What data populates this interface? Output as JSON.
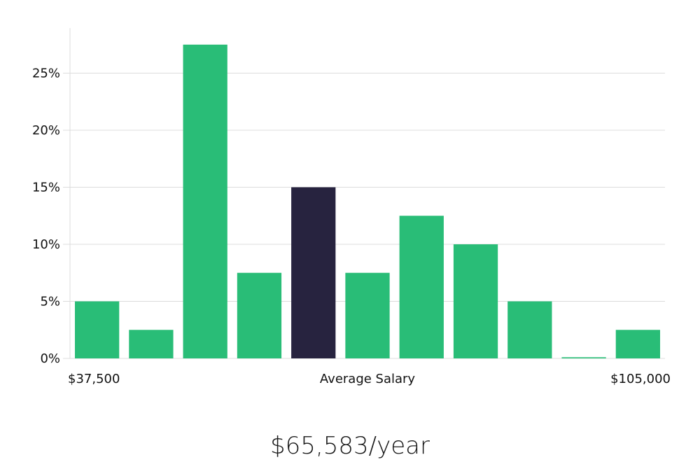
{
  "chart_data": {
    "type": "bar",
    "title": "",
    "xlabel": "Average Salary",
    "ylabel": "",
    "x_range_labels": {
      "min": "$37,500",
      "max": "$105,000"
    },
    "ylim": [
      0,
      28
    ],
    "yticks": [
      0,
      5,
      10,
      15,
      20,
      25
    ],
    "ytick_labels": [
      "0%",
      "5%",
      "10%",
      "15%",
      "20%",
      "25%"
    ],
    "grid": true,
    "values": [
      5,
      2.5,
      27.5,
      7.5,
      15,
      7.5,
      12.5,
      10,
      5,
      0.1,
      2.5
    ],
    "highlight_index": 4,
    "colors": {
      "bar": "#29bd77",
      "highlight": "#27233f",
      "grid": "#dcdcdc"
    }
  },
  "summary": {
    "average_salary": "$65,583/year"
  }
}
